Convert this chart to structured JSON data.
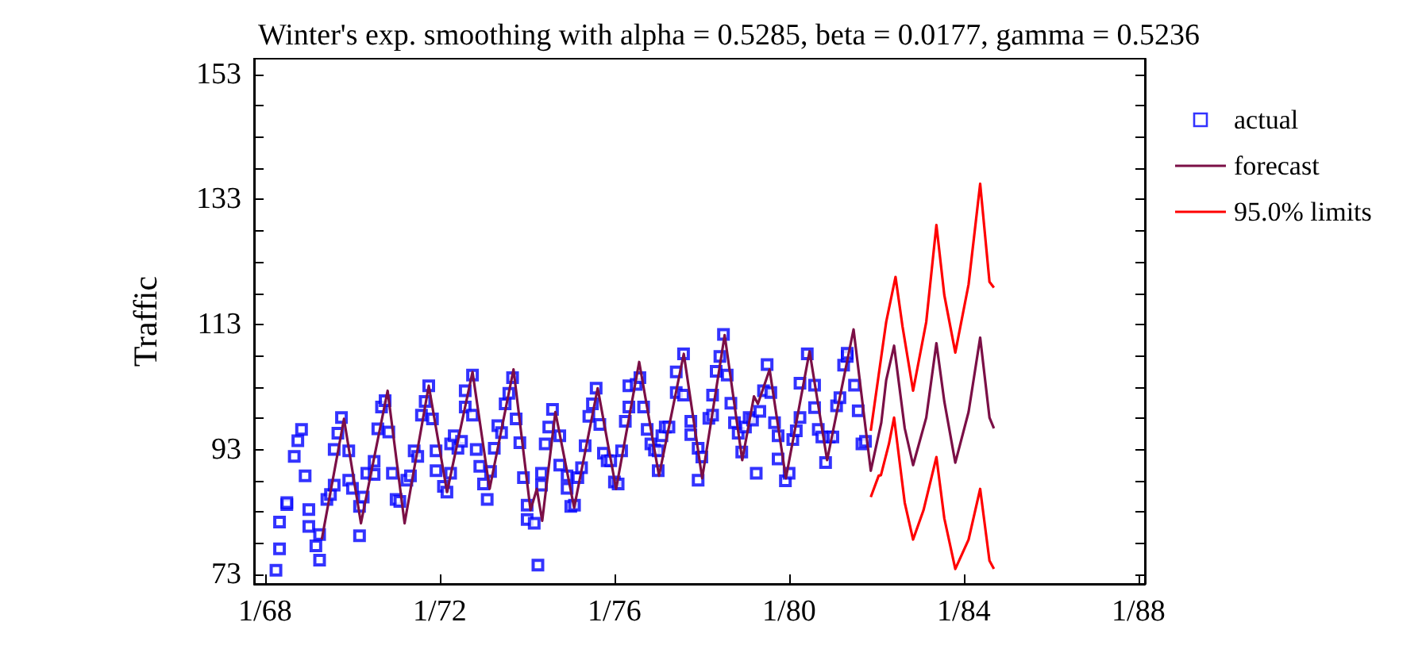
{
  "chart_data": {
    "type": "line",
    "title": "Winter's exp. smoothing with alpha = 0.5285, beta = 0.0177, gamma = 0.5236",
    "ylabel": "Traffic",
    "xlim": [
      "1967-10-01",
      "1988-02-24"
    ],
    "ylim": [
      71.5,
      155.5
    ],
    "xticks": [
      {
        "value": "1968-01",
        "label": "1/68"
      },
      {
        "value": "1972-01",
        "label": "1/72"
      },
      {
        "value": "1976-01",
        "label": "1/76"
      },
      {
        "value": "1980-01",
        "label": "1/80"
      },
      {
        "value": "1984-01",
        "label": "1/84"
      },
      {
        "value": "1988-01",
        "label": "1/88"
      }
    ],
    "yticks": [
      73,
      {
        "value": 78,
        "label": null
      },
      {
        "value": 83,
        "label": null
      },
      {
        "value": 88,
        "label": null
      },
      93,
      {
        "value": 98,
        "label": null
      },
      {
        "value": 103,
        "label": null
      },
      {
        "value": 108,
        "label": null
      },
      113,
      {
        "value": 118,
        "label": null
      },
      {
        "value": 123,
        "label": null
      },
      {
        "value": 128,
        "label": null
      },
      133,
      {
        "value": 138,
        "label": null
      },
      {
        "value": 143,
        "label": null
      },
      {
        "value": 148,
        "label": null
      },
      153
    ],
    "grid": false,
    "legend": "top right",
    "series": [
      {
        "name": "actual",
        "type": "scatter",
        "marker": "square",
        "color": "#0000ff",
        "x": [
          "1968-04",
          "1968-05",
          "1968-05",
          "1968-07",
          "1968-07",
          "1968-09",
          "1968-10",
          "1968-11",
          "1968-12",
          "1969-01",
          "1969-01",
          "1969-03",
          "1969-04",
          "1969-04",
          "1969-06",
          "1969-07",
          "1969-08",
          "1969-08",
          "1969-09",
          "1969-10",
          "1969-12",
          "1969-12",
          "1970-01",
          "1970-03",
          "1970-03",
          "1970-04",
          "1970-05",
          "1970-07",
          "1970-07",
          "1970-08",
          "1970-09",
          "1970-10",
          "1970-11",
          "1970-12",
          "1971-01",
          "1971-02",
          "1971-04",
          "1971-05",
          "1971-06",
          "1971-07",
          "1971-08",
          "1971-09",
          "1971-10",
          "1971-11",
          "1971-12",
          "1971-12",
          "1972-02",
          "1972-03",
          "1972-04",
          "1972-04",
          "1972-05",
          "1972-06",
          "1972-07",
          "1972-08",
          "1972-08",
          "1972-10",
          "1972-10",
          "1972-11",
          "1972-12",
          "1973-01",
          "1973-02",
          "1973-03",
          "1973-04",
          "1973-05",
          "1973-06",
          "1973-07",
          "1973-08",
          "1973-09",
          "1973-10",
          "1973-11",
          "1973-12",
          "1974-01",
          "1974-01",
          "1974-03",
          "1974-04",
          "1974-05",
          "1974-05",
          "1974-06",
          "1974-07",
          "1974-08",
          "1974-10",
          "1974-10",
          "1974-12",
          "1974-12",
          "1975-01",
          "1975-02",
          "1975-03",
          "1975-04",
          "1975-05",
          "1975-06",
          "1975-07",
          "1975-08",
          "1975-09",
          "1975-10",
          "1975-11",
          "1975-12",
          "1976-01",
          "1976-02",
          "1976-03",
          "1976-04",
          "1976-05",
          "1976-05",
          "1976-07",
          "1976-08",
          "1976-09",
          "1976-10",
          "1976-11",
          "1976-12",
          "1977-01",
          "1977-01",
          "1977-02",
          "1977-03",
          "1977-04",
          "1977-06",
          "1977-06",
          "1977-08",
          "1977-08",
          "1977-10",
          "1977-10",
          "1977-12",
          "1977-12",
          "1978-01",
          "1978-03",
          "1978-04",
          "1978-04",
          "1978-05",
          "1978-06",
          "1978-07",
          "1978-08",
          "1978-09",
          "1978-10",
          "1978-11",
          "1978-12",
          "1979-01",
          "1979-02",
          "1979-03",
          "1979-04",
          "1979-05",
          "1979-06",
          "1979-07",
          "1979-08",
          "1979-09",
          "1979-10",
          "1979-10",
          "1979-12",
          "1980-01",
          "1980-02",
          "1980-03",
          "1980-04",
          "1980-04",
          "1980-06",
          "1980-08",
          "1980-08",
          "1980-09",
          "1980-10",
          "1980-11",
          "1980-12",
          "1981-01",
          "1981-02",
          "1981-03",
          "1981-04",
          "1981-05",
          "1981-05",
          "1981-07",
          "1981-08",
          "1981-09",
          "1981-10"
        ],
        "values": [
          73.7,
          77.1,
          81.4,
          84.2,
          84.5,
          91.9,
          94.4,
          96.2,
          88.8,
          83.4,
          80.7,
          77.6,
          75.3,
          79.4,
          85,
          85.8,
          87.3,
          93,
          95.6,
          98.1,
          92.8,
          88.1,
          86.8,
          83.9,
          79.2,
          85.4,
          89.2,
          89,
          91.1,
          96.3,
          99.8,
          100.8,
          95.8,
          89.2,
          85,
          84.7,
          88.1,
          88.8,
          92.8,
          91.9,
          98.5,
          100.7,
          103.2,
          97.9,
          92.8,
          89.6,
          87.1,
          86.2,
          89.2,
          93.9,
          95.2,
          93.2,
          94.3,
          99.8,
          102.4,
          104.9,
          98.5,
          93,
          90.3,
          87.5,
          85,
          89.5,
          93.2,
          96.8,
          95.7,
          100.3,
          102,
          104.5,
          97.9,
          94.1,
          88.5,
          84.1,
          81.8,
          81.2,
          74.5,
          87.3,
          89.2,
          93.9,
          96.6,
          99.4,
          95.2,
          90.5,
          88.8,
          86.8,
          83.9,
          84.1,
          88.5,
          90.1,
          93.6,
          98.3,
          100.3,
          102.8,
          97,
          92.4,
          91.2,
          91.2,
          87.8,
          87.5,
          92.8,
          97.5,
          99.8,
          103.2,
          103.4,
          104.5,
          99.8,
          96.2,
          93.9,
          92.9,
          89.6,
          92.8,
          95.2,
          96.6,
          96.6,
          102.1,
          105.4,
          108.3,
          101.7,
          97.5,
          95.4,
          93.2,
          88.1,
          91.8,
          98,
          98.5,
          101.7,
          105.5,
          107.9,
          111.4,
          104.9,
          100.4,
          97.3,
          95.6,
          92.6,
          96.6,
          98.1,
          97.7,
          89.2,
          99.1,
          102.4,
          106.6,
          102.1,
          97.3,
          95.2,
          91.5,
          88,
          89.2,
          94.6,
          96,
          98.1,
          103.6,
          108.3,
          103.3,
          99.7,
          96.2,
          95,
          90.9,
          95,
          95,
          100,
          101.3,
          106.5,
          107.9,
          108.4,
          103.3,
          99.2,
          93.9,
          94.3
        ]
      },
      {
        "name": "forecast",
        "marker": "none",
        "color": "#7b0f46",
        "x": [
          "1969-04-19",
          "1969-10-22",
          "1970-03-13",
          "1970-10-22",
          "1971-03-13",
          "1971-10-01",
          "1972-03-02",
          "1972-10-01",
          "1973-02-21",
          "1973-09-09",
          "1974-01-29",
          "1974-03-23",
          "1974-05-07",
          "1974-08-25",
          "1975-01-29",
          "1975-08-14",
          "1976-01-15",
          "1976-07-26",
          "1977-01-08",
          "1977-08-03",
          "1978-01-04",
          "1978-07-11",
          "1978-12-05",
          "1979-03-13",
          "1979-04-15",
          "1979-07-22",
          "1979-12-05",
          "1980-06-20",
          "1980-11-14",
          "1981-06-23",
          "1981-11-14",
          "1982-02-10",
          "1982-03-23",
          "1982-05-28",
          "1982-08-25",
          "1982-11-03",
          "1983-02-21",
          "1983-05-17",
          "1983-07-22",
          "1983-10-22",
          "1984-02-10",
          "1984-05-17",
          "1984-08-03",
          "1984-09-09"
        ],
        "values": [
          78.6,
          97.9,
          81.2,
          102.4,
          81.2,
          103.2,
          86.2,
          105.4,
          86.7,
          105.8,
          83.3,
          86.7,
          81.6,
          99,
          83.7,
          102.8,
          86.7,
          107,
          88.8,
          108.3,
          88.4,
          111.3,
          91.3,
          101.5,
          100.3,
          105.8,
          88.4,
          108.7,
          91.3,
          112.2,
          89.6,
          97.3,
          104.1,
          109.6,
          96.4,
          90.5,
          98.1,
          110,
          100.7,
          90.9,
          99,
          110.9,
          98.1,
          96.4
        ]
      },
      {
        "name": "95.0% limits",
        "marker": "none",
        "color": "#ff0000",
        "x": [
          "1981-11-14",
          "1982-01-19",
          "1982-03-23",
          "1982-06-09",
          "1982-08-07",
          "1982-11-03",
          "1983-02-21",
          "1983-05-17",
          "1983-07-22",
          "1983-10-22",
          "1984-02-10",
          "1984-05-17",
          "1984-08-03",
          "1984-09-09"
        ],
        "values": [
          96,
          104.9,
          113.4,
          120.6,
          112.6,
          102.4,
          113.4,
          128.9,
          117.7,
          108.5,
          119.4,
          135.5,
          119.8,
          118.9
        ]
      },
      {
        "marker": "none",
        "color": "#ff0000",
        "x": [
          "1981-11-14",
          "1982-01-19",
          "1982-02-07",
          "1982-04-15",
          "1982-05-28",
          "1982-08-25",
          "1982-11-03",
          "1983-01-29",
          "1983-05-17",
          "1983-07-22",
          "1983-10-22",
          "1984-02-10",
          "1984-05-17",
          "1984-08-03",
          "1984-09-09"
        ],
        "values": [
          85.4,
          88.8,
          88.9,
          93.9,
          98.1,
          84.5,
          78.6,
          83.3,
          91.8,
          82,
          73.9,
          78.6,
          86.7,
          75.2,
          73.9
        ]
      }
    ]
  }
}
